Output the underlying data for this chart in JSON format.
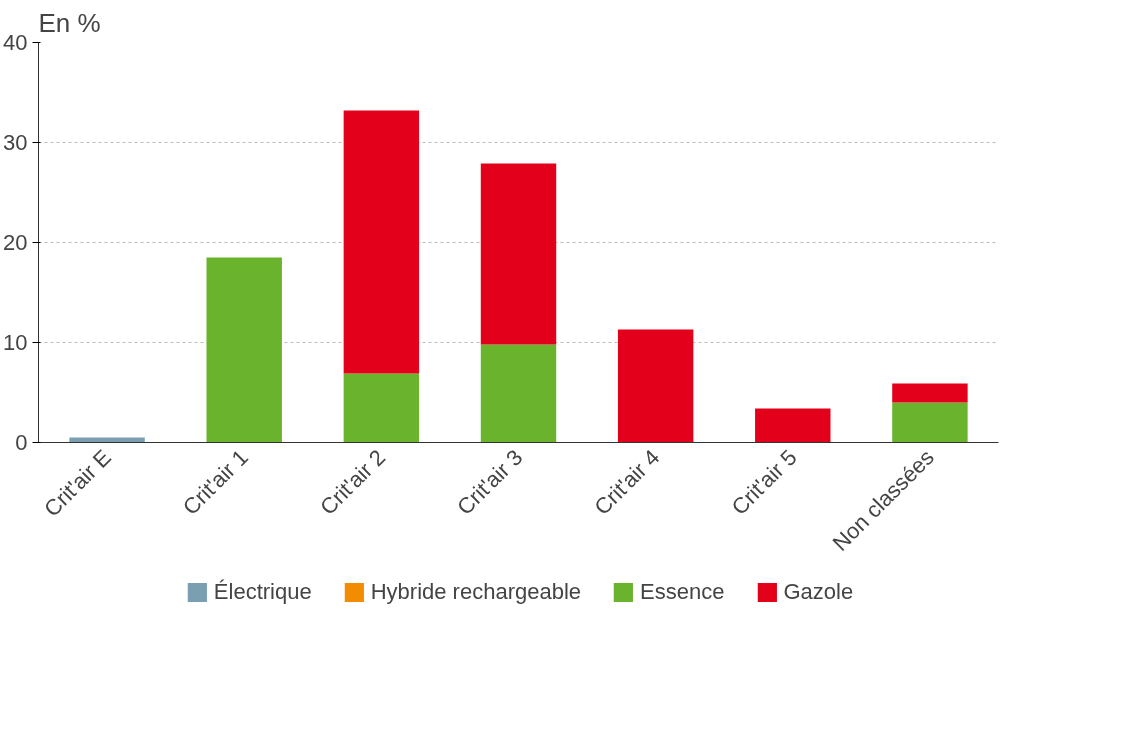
{
  "chart_data": {
    "type": "bar",
    "ylabel": "En %",
    "stacked": true,
    "categories": [
      "Crit'air E",
      "Crit'air 1",
      "Crit'air 2",
      "Crit'air 3",
      "Crit'air 4",
      "Crit'air 5",
      "Non classées"
    ],
    "series": [
      {
        "name": "Électrique",
        "color": "#7a9fb0",
        "values": [
          0.5,
          0,
          0,
          0,
          0,
          0,
          0
        ]
      },
      {
        "name": "Hybride rechargeable",
        "color": "#f28c00",
        "values": [
          0,
          0,
          0,
          0,
          0,
          0,
          0
        ]
      },
      {
        "name": "Essence",
        "color": "#6ab42d",
        "values": [
          0,
          18.5,
          6.9,
          9.8,
          0,
          0,
          4.0
        ]
      },
      {
        "name": "Gazole",
        "color": "#e2001a",
        "values": [
          0,
          0,
          26.3,
          18.1,
          11.3,
          3.4,
          1.9
        ]
      }
    ],
    "ylim": [
      0,
      40
    ],
    "yticks": [
      0,
      10,
      20,
      30,
      40
    ],
    "grid": "y",
    "legend": "bottom"
  }
}
